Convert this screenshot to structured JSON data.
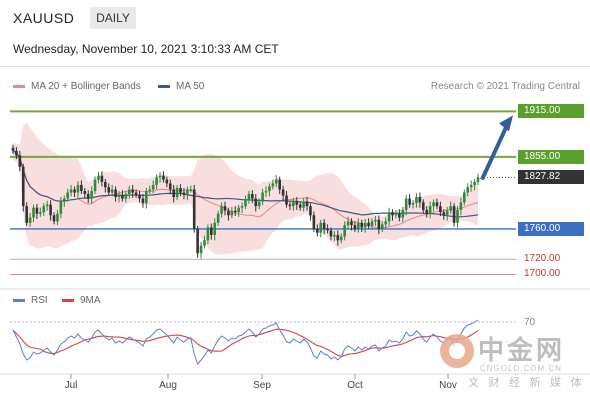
{
  "header": {
    "symbol": "XAUUSD",
    "timeframe": "DAILY"
  },
  "datetime": "Wednesday, November 10, 2021 3:10:33 AM CET",
  "legend": [
    {
      "label": "MA 20 + Bollinger Bands",
      "color": "#e8888a"
    },
    {
      "label": "MA 50",
      "color": "#3d5a80"
    }
  ],
  "credit": "Research © 2021 Trading Central",
  "colors": {
    "up": "#2e8b3e",
    "down": "#333333",
    "resistance": "#6fa83c",
    "support": "#3a6fc4",
    "minor": "#d98080",
    "forecast": "#2f5fa0",
    "band": "#f6d3d3",
    "rsi": "#5b7ed9",
    "rsi_ma": "#d9453a"
  },
  "chart_data": [
    {
      "type": "candlestick",
      "title": "XAUUSD DAILY",
      "x_months": [
        "Jul",
        "Aug",
        "Sep",
        "Oct",
        "Nov"
      ],
      "levels": [
        {
          "value": 1915.0,
          "label": "1915.00",
          "kind": "resistance"
        },
        {
          "value": 1855.0,
          "label": "1855.00",
          "kind": "resistance"
        },
        {
          "value": 1827.82,
          "label": "1827.82",
          "kind": "current"
        },
        {
          "value": 1760.0,
          "label": "1760.00",
          "kind": "support"
        },
        {
          "value": 1720.0,
          "label": "1720.00",
          "kind": "minor"
        },
        {
          "value": 1700.0,
          "label": "1700.00",
          "kind": "minor"
        }
      ],
      "ylim": [
        1690,
        1930
      ],
      "closes": [
        1863,
        1857,
        1842,
        1790,
        1768,
        1775,
        1788,
        1780,
        1782,
        1790,
        1792,
        1778,
        1770,
        1780,
        1796,
        1800,
        1808,
        1812,
        1808,
        1818,
        1810,
        1806,
        1800,
        1810,
        1825,
        1830,
        1822,
        1815,
        1808,
        1812,
        1802,
        1805,
        1800,
        1806,
        1812,
        1808,
        1805,
        1800,
        1794,
        1810,
        1812,
        1818,
        1828,
        1830,
        1825,
        1820,
        1812,
        1802,
        1814,
        1808,
        1805,
        1812,
        1812,
        1760,
        1728,
        1738,
        1745,
        1762,
        1752,
        1768,
        1780,
        1790,
        1784,
        1778,
        1784,
        1782,
        1788,
        1790,
        1798,
        1806,
        1800,
        1790,
        1796,
        1808,
        1810,
        1816,
        1820,
        1825,
        1812,
        1804,
        1792,
        1790,
        1796,
        1792,
        1788,
        1796,
        1790,
        1778,
        1760,
        1755,
        1768,
        1760,
        1758,
        1750,
        1752,
        1745,
        1750,
        1765,
        1770,
        1765,
        1760,
        1768,
        1762,
        1768,
        1764,
        1770,
        1772,
        1760,
        1766,
        1770,
        1782,
        1778,
        1780,
        1775,
        1785,
        1800,
        1792,
        1794,
        1802,
        1795,
        1785,
        1780,
        1790,
        1795,
        1790,
        1782,
        1778,
        1784,
        1790,
        1768,
        1785,
        1795,
        1808,
        1815,
        1818,
        1822,
        1827.82
      ],
      "forecast_target": 1915.0
    },
    {
      "type": "line",
      "title": "RSI",
      "series": [
        {
          "name": "RSI"
        },
        {
          "name": "9MA"
        }
      ],
      "ref_level_label": "70",
      "rsi": [
        62,
        55,
        48,
        38,
        32,
        34,
        40,
        38,
        39,
        42,
        44,
        40,
        37,
        42,
        48,
        50,
        54,
        56,
        54,
        58,
        54,
        52,
        50,
        54,
        60,
        62,
        58,
        55,
        52,
        54,
        49,
        51,
        49,
        52,
        55,
        53,
        51,
        49,
        46,
        53,
        55,
        58,
        62,
        63,
        60,
        57,
        53,
        49,
        55,
        52,
        50,
        53,
        54,
        38,
        28,
        32,
        36,
        42,
        39,
        46,
        52,
        56,
        54,
        51,
        54,
        53,
        56,
        57,
        60,
        63,
        60,
        55,
        58,
        63,
        64,
        66,
        67,
        69,
        62,
        57,
        50,
        49,
        53,
        51,
        49,
        53,
        50,
        44,
        36,
        34,
        41,
        38,
        37,
        33,
        35,
        32,
        35,
        43,
        46,
        44,
        41,
        45,
        42,
        45,
        43,
        46,
        47,
        41,
        44,
        46,
        52,
        50,
        51,
        49,
        53,
        60,
        56,
        57,
        61,
        58,
        53,
        50,
        55,
        58,
        55,
        51,
        49,
        52,
        56,
        45,
        53,
        58,
        64,
        67,
        68,
        70,
        72
      ]
    }
  ]
}
